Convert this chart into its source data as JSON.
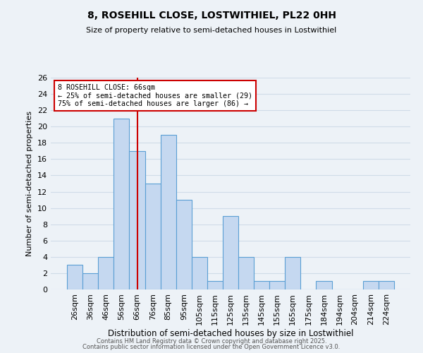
{
  "title": "8, ROSEHILL CLOSE, LOSTWITHIEL, PL22 0HH",
  "subtitle": "Size of property relative to semi-detached houses in Lostwithiel",
  "xlabel": "Distribution of semi-detached houses by size in Lostwithiel",
  "ylabel": "Number of semi-detached properties",
  "bar_labels": [
    "26sqm",
    "36sqm",
    "46sqm",
    "56sqm",
    "66sqm",
    "76sqm",
    "85sqm",
    "95sqm",
    "105sqm",
    "115sqm",
    "125sqm",
    "135sqm",
    "145sqm",
    "155sqm",
    "165sqm",
    "175sqm",
    "184sqm",
    "194sqm",
    "204sqm",
    "214sqm",
    "224sqm"
  ],
  "bar_values": [
    3,
    2,
    4,
    21,
    17,
    13,
    19,
    11,
    4,
    1,
    9,
    4,
    1,
    1,
    4,
    0,
    1,
    0,
    0,
    1,
    1
  ],
  "bar_color": "#c5d8f0",
  "bar_edge_color": "#5a9fd4",
  "ylim": [
    0,
    26
  ],
  "yticks": [
    0,
    2,
    4,
    6,
    8,
    10,
    12,
    14,
    16,
    18,
    20,
    22,
    24,
    26
  ],
  "property_label": "8 ROSEHILL CLOSE: 66sqm",
  "pct_smaller": 25,
  "pct_larger": 75,
  "n_smaller": 29,
  "n_larger": 86,
  "vline_bin_index": 4,
  "annotation_box_color": "#cc0000",
  "grid_color": "#d0dce8",
  "bg_color": "#edf2f7",
  "footer_line1": "Contains HM Land Registry data © Crown copyright and database right 2025.",
  "footer_line2": "Contains public sector information licensed under the Open Government Licence v3.0."
}
